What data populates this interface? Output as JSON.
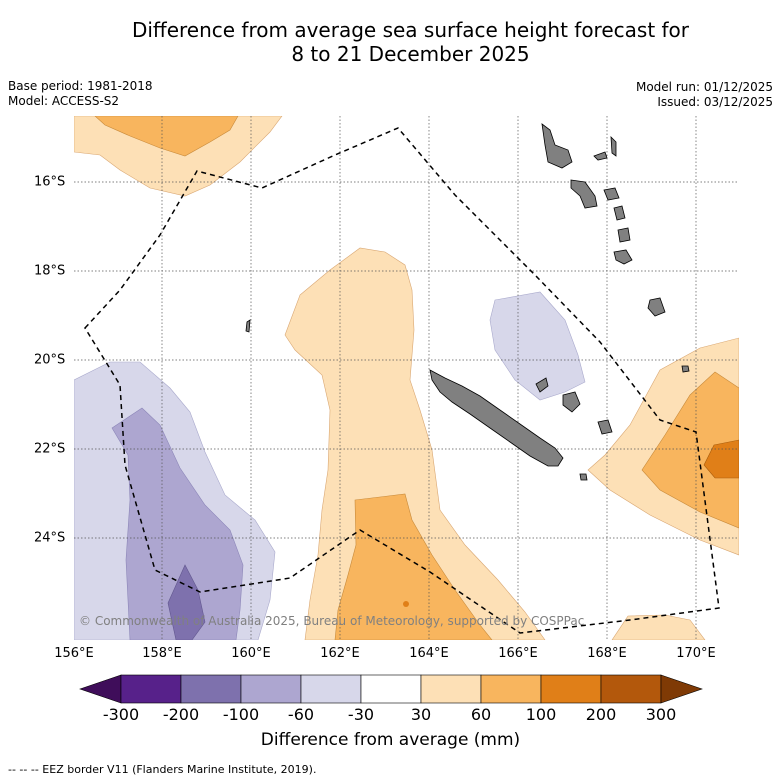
{
  "title_line1": "Difference from average sea surface height forecast for",
  "title_line2": "8 to 21 December 2025",
  "base_period": "Base period: 1981-2018",
  "model": "Model: ACCESS-S2",
  "model_run": "Model run: 01/12/2025",
  "issued": "Issued: 03/12/2025",
  "copyright": "© Commonwealth of Australia 2025, Bureau of Meteorology, supported by COSPPac",
  "lon_labels": [
    "156°E",
    "158°E",
    "160°E",
    "162°E",
    "164°E",
    "166°E",
    "168°E",
    "170°E"
  ],
  "lat_labels": [
    "16°S",
    "18°S",
    "20°S",
    "22°S",
    "24°S"
  ],
  "colorbar": {
    "ticks": [
      "-300",
      "-200",
      "-100",
      "-60",
      "-30",
      "30",
      "60",
      "100",
      "200",
      "300"
    ],
    "colors": [
      "#3f0d5a",
      "#57218a",
      "#7e71ad",
      "#ada6d0",
      "#d7d7ea",
      "#ffffff",
      "#fde0b6",
      "#f8b55e",
      "#e07f18",
      "#b3580c",
      "#7f3a05"
    ],
    "label": "Difference from average (mm)"
  },
  "legend_text": "-- -- -- EEZ border V11 (Flanders Marine Institute, 2019)."
}
